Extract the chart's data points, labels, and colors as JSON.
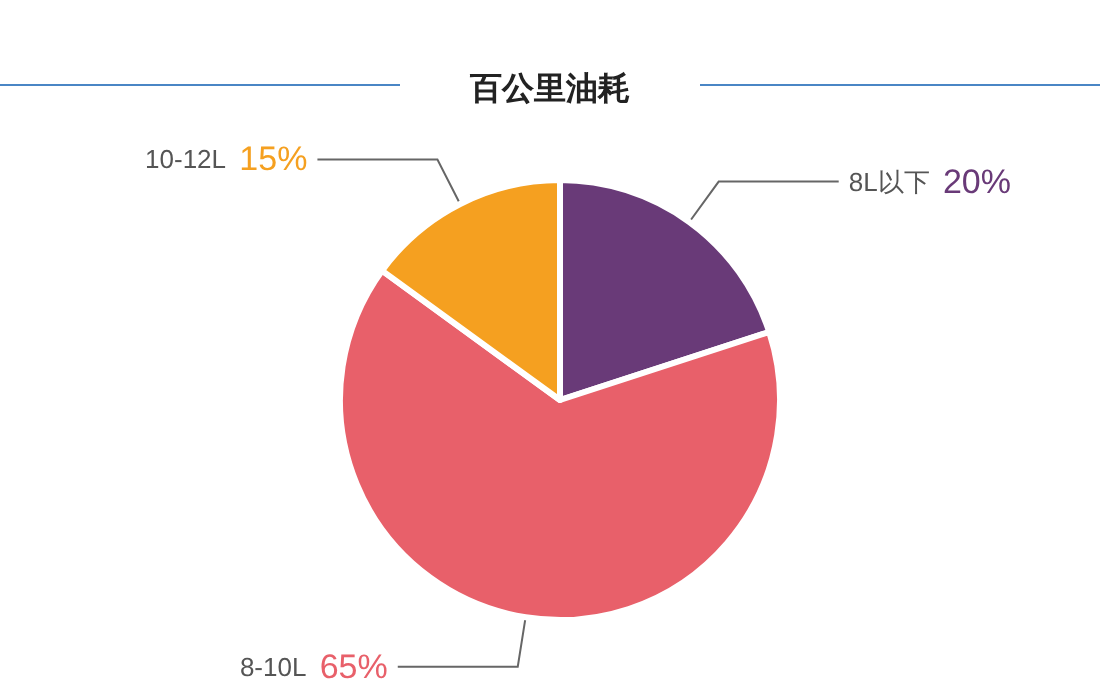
{
  "chart_data": {
    "type": "pie",
    "title": "百公里油耗",
    "categories": [
      "8L以下",
      "8-10L",
      "10-12L"
    ],
    "values": [
      20,
      65,
      15
    ],
    "colors": [
      "#693a78",
      "#e8606a",
      "#f5a020"
    ],
    "value_labels": [
      "20%",
      "65%",
      "15%"
    ],
    "legend": false
  }
}
